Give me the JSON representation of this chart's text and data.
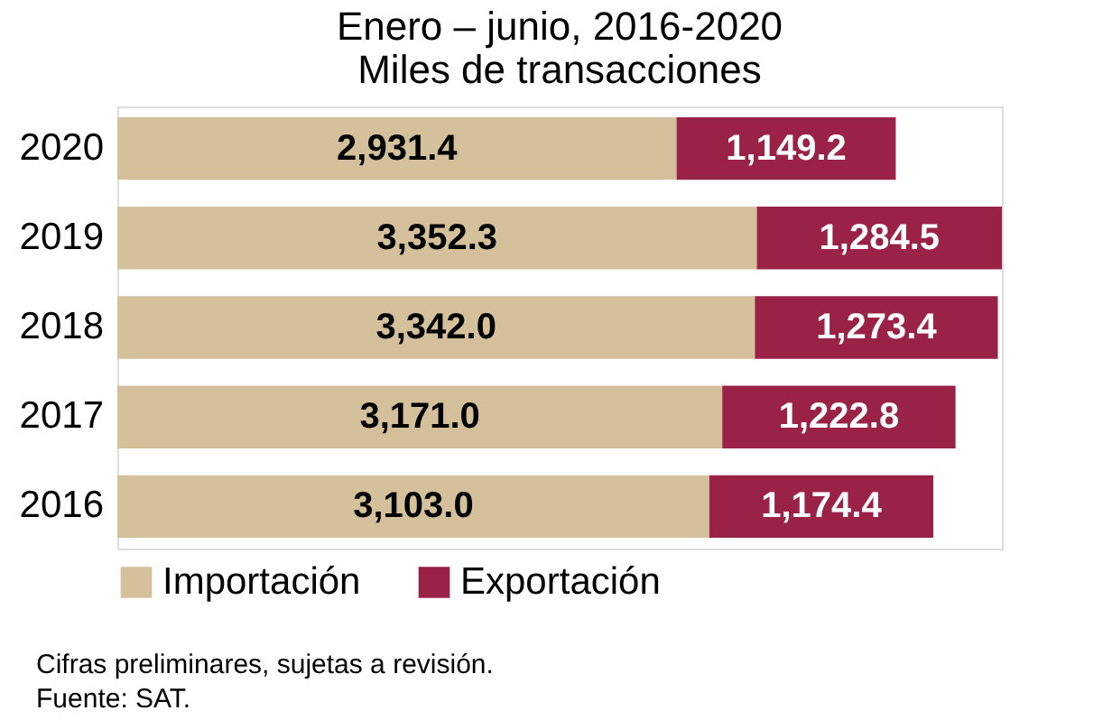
{
  "chart_data": {
    "type": "bar",
    "orientation": "horizontal",
    "stacked": true,
    "legend": "bottom",
    "title": "Enero – junio, 2016-2020",
    "subtitle": "Miles de transacciones",
    "categories": [
      "2020",
      "2019",
      "2018",
      "2017",
      "2016"
    ],
    "series": [
      {
        "name": "Importación",
        "color": "#d4c19c",
        "values": [
          2931.4,
          3352.3,
          3342.0,
          3171.0,
          3103.0
        ],
        "value_labels": [
          "2,931.4",
          "3,352.3",
          "3,342.0",
          "3,171.0",
          "3,103.0"
        ]
      },
      {
        "name": "Exportación",
        "color": "#9b2247",
        "values": [
          1149.2,
          1284.5,
          1273.4,
          1222.8,
          1174.4
        ],
        "value_labels": [
          "1,149.2",
          "1,284.5",
          "1,273.4",
          "1,222.8",
          "1,174.4"
        ]
      }
    ],
    "annotations": [
      "Cifras preliminares, sujetas a revisión.",
      "Fuente: SAT."
    ]
  }
}
